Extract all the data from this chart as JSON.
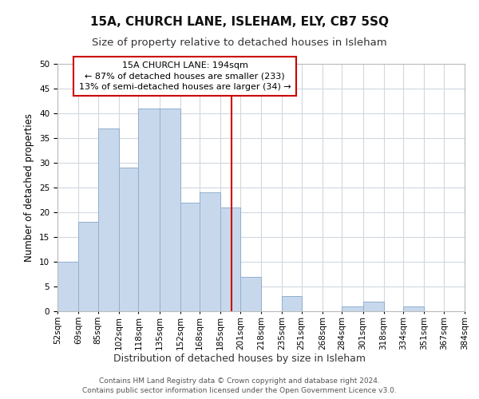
{
  "title": "15A, CHURCH LANE, ISLEHAM, ELY, CB7 5SQ",
  "subtitle": "Size of property relative to detached houses in Isleham",
  "xlabel": "Distribution of detached houses by size in Isleham",
  "ylabel": "Number of detached properties",
  "bin_labels": [
    "52sqm",
    "69sqm",
    "85sqm",
    "102sqm",
    "118sqm",
    "135sqm",
    "152sqm",
    "168sqm",
    "185sqm",
    "201sqm",
    "218sqm",
    "235sqm",
    "251sqm",
    "268sqm",
    "284sqm",
    "301sqm",
    "318sqm",
    "334sqm",
    "351sqm",
    "367sqm",
    "384sqm"
  ],
  "bin_edges": [
    52,
    69,
    85,
    102,
    118,
    135,
    152,
    168,
    185,
    201,
    218,
    235,
    251,
    268,
    284,
    301,
    318,
    334,
    351,
    367,
    384
  ],
  "counts": [
    10,
    18,
    37,
    29,
    41,
    41,
    22,
    24,
    21,
    7,
    0,
    3,
    0,
    0,
    1,
    2,
    0,
    1,
    0,
    0
  ],
  "bar_color": "#c8d8ec",
  "bar_edgecolor": "#90b0cc",
  "grid_color": "#d0d8e0",
  "property_line_x": 194,
  "property_line_color": "#cc0000",
  "annotation_title": "15A CHURCH LANE: 194sqm",
  "annotation_line1": "← 87% of detached houses are smaller (233)",
  "annotation_line2": "13% of semi-detached houses are larger (34) →",
  "annotation_box_color": "#ffffff",
  "annotation_box_edgecolor": "#cc0000",
  "ylim": [
    0,
    50
  ],
  "yticks": [
    0,
    5,
    10,
    15,
    20,
    25,
    30,
    35,
    40,
    45,
    50
  ],
  "footer1": "Contains HM Land Registry data © Crown copyright and database right 2024.",
  "footer2": "Contains public sector information licensed under the Open Government Licence v3.0.",
  "title_fontsize": 11,
  "subtitle_fontsize": 9.5,
  "xlabel_fontsize": 9,
  "ylabel_fontsize": 8.5,
  "tick_fontsize": 7.5,
  "annotation_fontsize": 8,
  "footer_fontsize": 6.5,
  "background_color": "#ffffff"
}
